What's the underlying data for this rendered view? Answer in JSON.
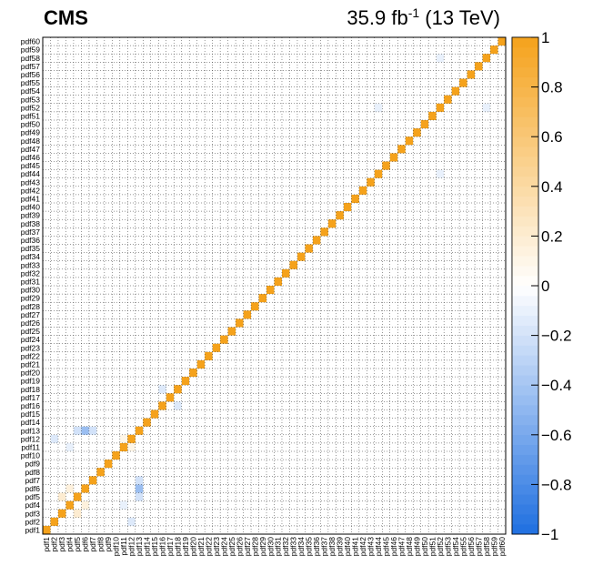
{
  "header": {
    "experiment": "CMS",
    "lumi_value": "35.9 fb",
    "lumi_exp": "-1",
    "energy": " (13 TeV)"
  },
  "chart_data": {
    "type": "heatmap",
    "x_labels": [
      "pdf1",
      "pdf2",
      "pdf3",
      "pdf4",
      "pdf5",
      "pdf6",
      "pdf7",
      "pdf8",
      "pdf9",
      "pdf10",
      "pdf11",
      "pdf12",
      "pdf13",
      "pdf14",
      "pdf15",
      "pdf16",
      "pdf17",
      "pdf18",
      "pdf19",
      "pdf20",
      "pdf21",
      "pdf22",
      "pdf23",
      "pdf24",
      "pdf25",
      "pdf26",
      "pdf27",
      "pdf28",
      "pdf29",
      "pdf30",
      "pdf31",
      "pdf32",
      "pdf33",
      "pdf34",
      "pdf35",
      "pdf36",
      "pdf37",
      "pdf38",
      "pdf39",
      "pdf40",
      "pdf41",
      "pdf42",
      "pdf43",
      "pdf44",
      "pdf45",
      "pdf46",
      "pdf47",
      "pdf48",
      "pdf49",
      "pdf50",
      "pdf51",
      "pdf52",
      "pdf53",
      "pdf54",
      "pdf55",
      "pdf56",
      "pdf57",
      "pdf58",
      "pdf59",
      "pdf60"
    ],
    "y_labels": [
      "pdf1",
      "pdf2",
      "pdf3",
      "pdf4",
      "pdf5",
      "pdf6",
      "pdf7",
      "pdf8",
      "pdf9",
      "pdf10",
      "pdf11",
      "pdf12",
      "pdf13",
      "pdf14",
      "pdf15",
      "pdf16",
      "pdf17",
      "pdf18",
      "pdf19",
      "pdf20",
      "pdf21",
      "pdf22",
      "pdf23",
      "pdf24",
      "pdf25",
      "pdf26",
      "pdf27",
      "pdf28",
      "pdf29",
      "pdf30",
      "pdf31",
      "pdf32",
      "pdf33",
      "pdf34",
      "pdf35",
      "pdf36",
      "pdf37",
      "pdf38",
      "pdf39",
      "pdf40",
      "pdf41",
      "pdf42",
      "pdf43",
      "pdf44",
      "pdf45",
      "pdf46",
      "pdf47",
      "pdf48",
      "pdf49",
      "pdf50",
      "pdf51",
      "pdf52",
      "pdf53",
      "pdf54",
      "pdf55",
      "pdf56",
      "pdf57",
      "pdf58",
      "pdf59",
      "pdf60"
    ],
    "diagonal_value": 1,
    "offdiagonal_notable": [
      {
        "x": "pdf6",
        "y": "pdf13",
        "value": -0.45
      },
      {
        "x": "pdf5",
        "y": "pdf13",
        "value": -0.2
      },
      {
        "x": "pdf7",
        "y": "pdf13",
        "value": -0.2
      },
      {
        "x": "pdf13",
        "y": "pdf6",
        "value": -0.45
      },
      {
        "x": "pdf13",
        "y": "pdf5",
        "value": -0.2
      },
      {
        "x": "pdf13",
        "y": "pdf7",
        "value": -0.2
      },
      {
        "x": "pdf3",
        "y": "pdf5",
        "value": 0.2
      },
      {
        "x": "pdf5",
        "y": "pdf3",
        "value": 0.2
      },
      {
        "x": "pdf4",
        "y": "pdf6",
        "value": 0.15
      },
      {
        "x": "pdf6",
        "y": "pdf4",
        "value": 0.15
      },
      {
        "x": "pdf2",
        "y": "pdf12",
        "value": -0.15
      },
      {
        "x": "pdf12",
        "y": "pdf2",
        "value": -0.15
      },
      {
        "x": "pdf16",
        "y": "pdf18",
        "value": -0.15
      },
      {
        "x": "pdf18",
        "y": "pdf16",
        "value": -0.15
      },
      {
        "x": "pdf11",
        "y": "pdf4",
        "value": -0.1
      },
      {
        "x": "pdf4",
        "y": "pdf11",
        "value": -0.1
      },
      {
        "x": "pdf12",
        "y": "pdf11",
        "value": 0.1
      },
      {
        "x": "pdf11",
        "y": "pdf12",
        "value": 0.1
      },
      {
        "x": "pdf44",
        "y": "pdf52",
        "value": -0.1
      },
      {
        "x": "pdf52",
        "y": "pdf44",
        "value": -0.1
      },
      {
        "x": "pdf58",
        "y": "pdf52",
        "value": -0.1
      },
      {
        "x": "pdf52",
        "y": "pdf58",
        "value": -0.1
      }
    ],
    "zlim": [
      -1,
      1
    ],
    "z_ticks": [
      "1",
      "0.8",
      "0.6",
      "0.4",
      "0.2",
      "0",
      "−0.2",
      "−0.4",
      "−0.6",
      "−0.8",
      "−1"
    ],
    "z_tick_values": [
      1,
      0.8,
      0.6,
      0.4,
      0.2,
      0,
      -0.2,
      -0.4,
      -0.6,
      -0.8,
      -1
    ],
    "colors": {
      "negative": "#1f6fe0",
      "zero": "#ffffff",
      "positive": "#f5a21b"
    },
    "grid": "dotted",
    "title": "",
    "xlabel": "",
    "ylabel": ""
  }
}
